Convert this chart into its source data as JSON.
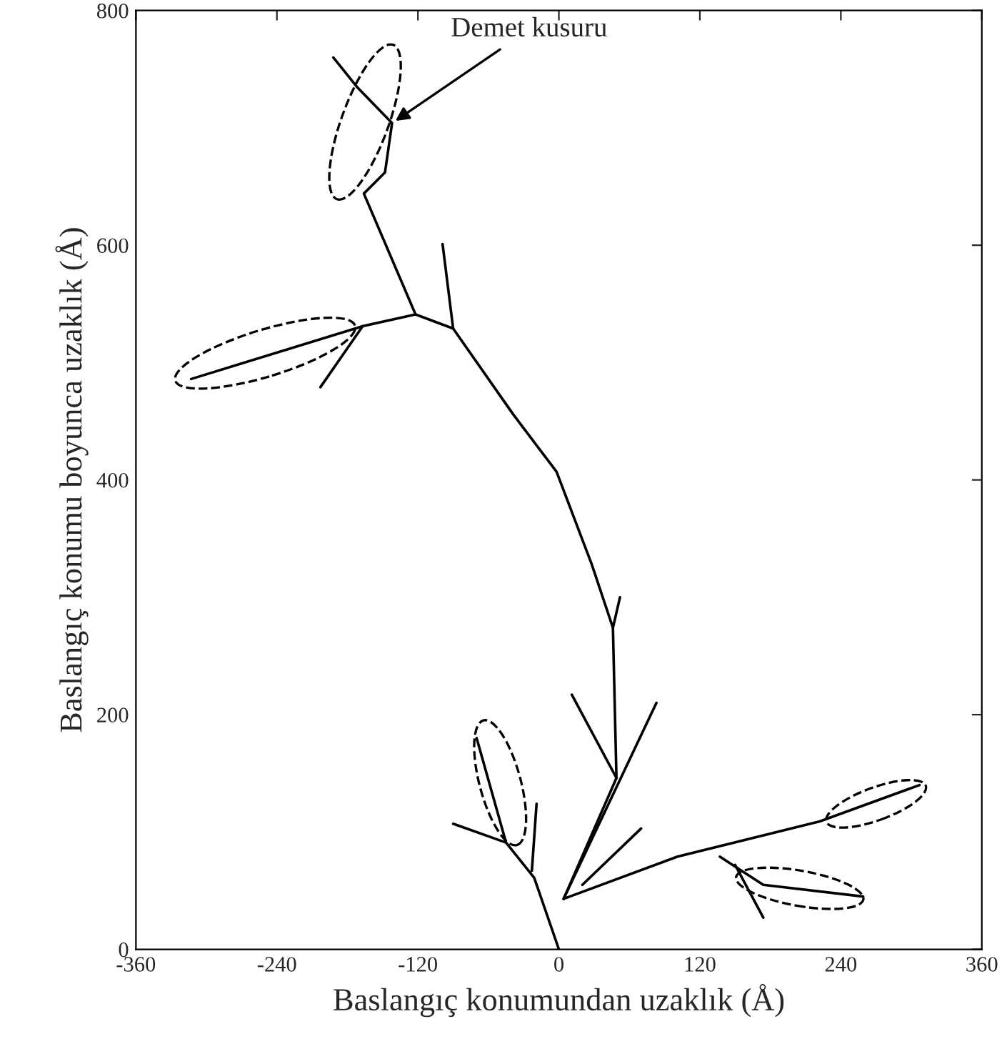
{
  "chart_data": {
    "type": "line",
    "xlabel": "Baslangıç konumundan uzaklık (Å)",
    "ylabel": "Baslangıç konumu boyunca uzaklık (Å)",
    "xlim": [
      -360,
      360
    ],
    "xticks": [
      -360,
      -240,
      -120,
      0,
      120,
      240,
      360
    ],
    "ylim": [
      0,
      800
    ],
    "yticks": [
      0,
      200,
      400,
      600,
      800
    ],
    "grid": false,
    "marker": "none",
    "line_style": "solid",
    "annotations": [
      {
        "text": "Demet kusuru",
        "x": -142,
        "y": 704
      }
    ],
    "series": [
      {
        "color": "#000000",
        "x": [
          0,
          -21,
          -45,
          -70
        ],
        "values": [
          0,
          61,
          91,
          180
        ]
      },
      {
        "color": "#000000",
        "x": [
          -45,
          -90
        ],
        "values": [
          91,
          107
        ]
      },
      {
        "color": "#000000",
        "x": [
          -23,
          -19
        ],
        "values": [
          67,
          124
        ]
      },
      {
        "color": "#000000",
        "x": [
          4,
          49,
          46,
          28,
          -2,
          -39,
          -90,
          -122,
          -167,
          -313
        ],
        "values": [
          43,
          146,
          274,
          328,
          407,
          456,
          529,
          541,
          531,
          486
        ]
      },
      {
        "color": "#000000",
        "x": [
          -122,
          -166,
          -148,
          -142,
          -172,
          -192
        ],
        "values": [
          541,
          644,
          662,
          704,
          735,
          760
        ]
      },
      {
        "color": "#000000",
        "x": [
          -90,
          -99
        ],
        "values": [
          529,
          601
        ]
      },
      {
        "color": "#000000",
        "x": [
          -167,
          -203
        ],
        "values": [
          531,
          479
        ]
      },
      {
        "color": "#000000",
        "x": [
          4,
          83
        ],
        "values": [
          43,
          210
        ]
      },
      {
        "color": "#000000",
        "x": [
          49,
          11
        ],
        "values": [
          146,
          217
        ]
      },
      {
        "color": "#000000",
        "x": [
          46,
          52
        ],
        "values": [
          274,
          300
        ]
      },
      {
        "color": "#000000",
        "x": [
          4,
          101,
          222,
          307
        ],
        "values": [
          43,
          79,
          109,
          140
        ]
      },
      {
        "color": "#000000",
        "x": [
          137,
          174,
          259
        ],
        "values": [
          79,
          55,
          45
        ]
      },
      {
        "color": "#000000",
        "x": [
          150,
          174
        ],
        "values": [
          72,
          27
        ]
      },
      {
        "color": "#000000",
        "x": [
          20,
          70
        ],
        "values": [
          55,
          103
        ]
      }
    ]
  }
}
